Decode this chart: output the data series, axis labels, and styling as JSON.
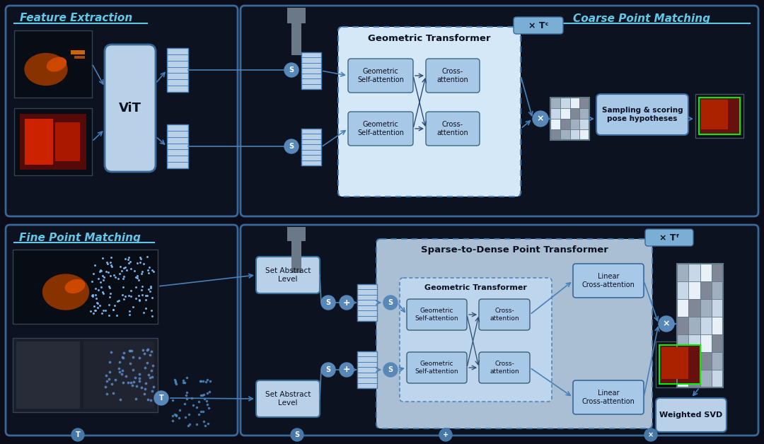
{
  "bg_color": "#0a0c1a",
  "panel_dark": "#0c1220",
  "panel_border": "#2a5a8a",
  "blue_light": "#b8d0e8",
  "blue_mid": "#7aaed4",
  "blue_very_light": "#d4e8f8",
  "blue_inner": "#c0d8f0",
  "blue_box": "#a8c8e8",
  "gray_connector": "#6a7888",
  "arrow_color": "#4a80b8",
  "title_cyan": "#60c8e8",
  "text_dark": "#0a1020",
  "grid_colors": [
    "#a0b0c0",
    "#c8d8e8",
    "#e8f0f8",
    "#808898"
  ],
  "top_title": "Feature Extraction",
  "bottom_title": "Fine Point Matching",
  "top_right_title": "Coarse Point Matching",
  "geo_transformer_title": "Geometric Transformer",
  "sparse_dense_title": "Sparse-to-Dense Point Transformer",
  "vit_label": "ViT",
  "sampling_label": "Sampling & scoring\npose hypotheses",
  "set_abstract1": "Set Abstract\nLevel",
  "set_abstract2": "Set Abstract\nLevel",
  "weighted_svd": "Weighted SVD",
  "linear_cross1": "Linear\nCross-attention",
  "linear_cross2": "Linear\nCross-attention",
  "geo_self1": "Geometric\nSelf-attention",
  "cross_att1": "Cross-\nattention",
  "geo_self2": "Geometric\nSelf-attention",
  "cross_att2": "Cross-\nattention",
  "geo_self3": "Geometric\nSelf-attention",
  "cross_att3": "Cross-\nattention",
  "geo_self4": "Geometric\nSelf-attention",
  "cross_att4": "Cross-\nattention",
  "tc_label": "× Tᶜ",
  "tf_label": "× Tᶠ",
  "bottom_labels": [
    "T",
    "S",
    "+",
    "×"
  ]
}
